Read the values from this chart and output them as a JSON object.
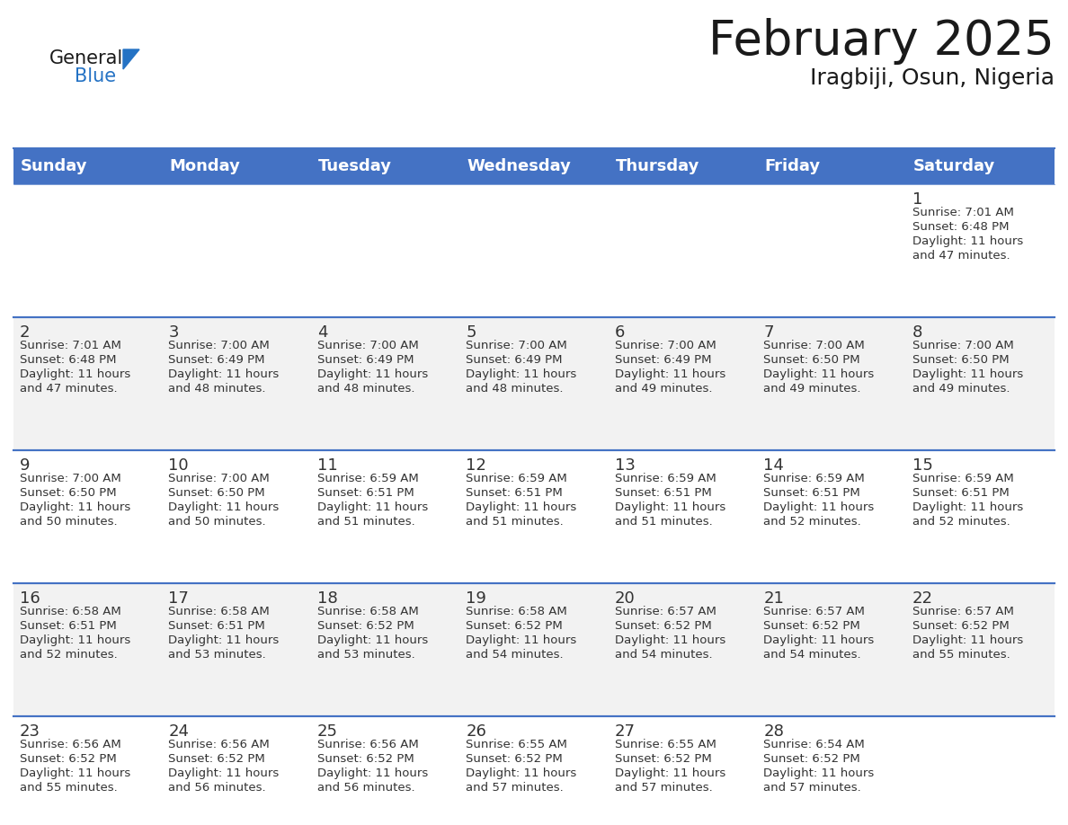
{
  "title": "February 2025",
  "subtitle": "Iragbiji, Osun, Nigeria",
  "header_color": "#4472C4",
  "header_text_color": "#FFFFFF",
  "bg_color": "#FFFFFF",
  "alt_row_color": "#F2F2F2",
  "border_color": "#4472C4",
  "text_color": "#333333",
  "day_names": [
    "Sunday",
    "Monday",
    "Tuesday",
    "Wednesday",
    "Thursday",
    "Friday",
    "Saturday"
  ],
  "title_fontsize": 38,
  "subtitle_fontsize": 18,
  "day_number_fontsize": 13,
  "cell_text_fontsize": 9.5,
  "header_fontsize": 13,
  "logo_general_fontsize": 15,
  "logo_blue_fontsize": 15,
  "days": [
    {
      "day": 1,
      "col": 6,
      "row": 0,
      "sunrise": "7:01 AM",
      "sunset": "6:48 PM",
      "daylight_line1": "Daylight: 11 hours",
      "daylight_line2": "and 47 minutes."
    },
    {
      "day": 2,
      "col": 0,
      "row": 1,
      "sunrise": "7:01 AM",
      "sunset": "6:48 PM",
      "daylight_line1": "Daylight: 11 hours",
      "daylight_line2": "and 47 minutes."
    },
    {
      "day": 3,
      "col": 1,
      "row": 1,
      "sunrise": "7:00 AM",
      "sunset": "6:49 PM",
      "daylight_line1": "Daylight: 11 hours",
      "daylight_line2": "and 48 minutes."
    },
    {
      "day": 4,
      "col": 2,
      "row": 1,
      "sunrise": "7:00 AM",
      "sunset": "6:49 PM",
      "daylight_line1": "Daylight: 11 hours",
      "daylight_line2": "and 48 minutes."
    },
    {
      "day": 5,
      "col": 3,
      "row": 1,
      "sunrise": "7:00 AM",
      "sunset": "6:49 PM",
      "daylight_line1": "Daylight: 11 hours",
      "daylight_line2": "and 48 minutes."
    },
    {
      "day": 6,
      "col": 4,
      "row": 1,
      "sunrise": "7:00 AM",
      "sunset": "6:49 PM",
      "daylight_line1": "Daylight: 11 hours",
      "daylight_line2": "and 49 minutes."
    },
    {
      "day": 7,
      "col": 5,
      "row": 1,
      "sunrise": "7:00 AM",
      "sunset": "6:50 PM",
      "daylight_line1": "Daylight: 11 hours",
      "daylight_line2": "and 49 minutes."
    },
    {
      "day": 8,
      "col": 6,
      "row": 1,
      "sunrise": "7:00 AM",
      "sunset": "6:50 PM",
      "daylight_line1": "Daylight: 11 hours",
      "daylight_line2": "and 49 minutes."
    },
    {
      "day": 9,
      "col": 0,
      "row": 2,
      "sunrise": "7:00 AM",
      "sunset": "6:50 PM",
      "daylight_line1": "Daylight: 11 hours",
      "daylight_line2": "and 50 minutes."
    },
    {
      "day": 10,
      "col": 1,
      "row": 2,
      "sunrise": "7:00 AM",
      "sunset": "6:50 PM",
      "daylight_line1": "Daylight: 11 hours",
      "daylight_line2": "and 50 minutes."
    },
    {
      "day": 11,
      "col": 2,
      "row": 2,
      "sunrise": "6:59 AM",
      "sunset": "6:51 PM",
      "daylight_line1": "Daylight: 11 hours",
      "daylight_line2": "and 51 minutes."
    },
    {
      "day": 12,
      "col": 3,
      "row": 2,
      "sunrise": "6:59 AM",
      "sunset": "6:51 PM",
      "daylight_line1": "Daylight: 11 hours",
      "daylight_line2": "and 51 minutes."
    },
    {
      "day": 13,
      "col": 4,
      "row": 2,
      "sunrise": "6:59 AM",
      "sunset": "6:51 PM",
      "daylight_line1": "Daylight: 11 hours",
      "daylight_line2": "and 51 minutes."
    },
    {
      "day": 14,
      "col": 5,
      "row": 2,
      "sunrise": "6:59 AM",
      "sunset": "6:51 PM",
      "daylight_line1": "Daylight: 11 hours",
      "daylight_line2": "and 52 minutes."
    },
    {
      "day": 15,
      "col": 6,
      "row": 2,
      "sunrise": "6:59 AM",
      "sunset": "6:51 PM",
      "daylight_line1": "Daylight: 11 hours",
      "daylight_line2": "and 52 minutes."
    },
    {
      "day": 16,
      "col": 0,
      "row": 3,
      "sunrise": "6:58 AM",
      "sunset": "6:51 PM",
      "daylight_line1": "Daylight: 11 hours",
      "daylight_line2": "and 52 minutes."
    },
    {
      "day": 17,
      "col": 1,
      "row": 3,
      "sunrise": "6:58 AM",
      "sunset": "6:51 PM",
      "daylight_line1": "Daylight: 11 hours",
      "daylight_line2": "and 53 minutes."
    },
    {
      "day": 18,
      "col": 2,
      "row": 3,
      "sunrise": "6:58 AM",
      "sunset": "6:52 PM",
      "daylight_line1": "Daylight: 11 hours",
      "daylight_line2": "and 53 minutes."
    },
    {
      "day": 19,
      "col": 3,
      "row": 3,
      "sunrise": "6:58 AM",
      "sunset": "6:52 PM",
      "daylight_line1": "Daylight: 11 hours",
      "daylight_line2": "and 54 minutes."
    },
    {
      "day": 20,
      "col": 4,
      "row": 3,
      "sunrise": "6:57 AM",
      "sunset": "6:52 PM",
      "daylight_line1": "Daylight: 11 hours",
      "daylight_line2": "and 54 minutes."
    },
    {
      "day": 21,
      "col": 5,
      "row": 3,
      "sunrise": "6:57 AM",
      "sunset": "6:52 PM",
      "daylight_line1": "Daylight: 11 hours",
      "daylight_line2": "and 54 minutes."
    },
    {
      "day": 22,
      "col": 6,
      "row": 3,
      "sunrise": "6:57 AM",
      "sunset": "6:52 PM",
      "daylight_line1": "Daylight: 11 hours",
      "daylight_line2": "and 55 minutes."
    },
    {
      "day": 23,
      "col": 0,
      "row": 4,
      "sunrise": "6:56 AM",
      "sunset": "6:52 PM",
      "daylight_line1": "Daylight: 11 hours",
      "daylight_line2": "and 55 minutes."
    },
    {
      "day": 24,
      "col": 1,
      "row": 4,
      "sunrise": "6:56 AM",
      "sunset": "6:52 PM",
      "daylight_line1": "Daylight: 11 hours",
      "daylight_line2": "and 56 minutes."
    },
    {
      "day": 25,
      "col": 2,
      "row": 4,
      "sunrise": "6:56 AM",
      "sunset": "6:52 PM",
      "daylight_line1": "Daylight: 11 hours",
      "daylight_line2": "and 56 minutes."
    },
    {
      "day": 26,
      "col": 3,
      "row": 4,
      "sunrise": "6:55 AM",
      "sunset": "6:52 PM",
      "daylight_line1": "Daylight: 11 hours",
      "daylight_line2": "and 57 minutes."
    },
    {
      "day": 27,
      "col": 4,
      "row": 4,
      "sunrise": "6:55 AM",
      "sunset": "6:52 PM",
      "daylight_line1": "Daylight: 11 hours",
      "daylight_line2": "and 57 minutes."
    },
    {
      "day": 28,
      "col": 5,
      "row": 4,
      "sunrise": "6:54 AM",
      "sunset": "6:52 PM",
      "daylight_line1": "Daylight: 11 hours",
      "daylight_line2": "and 57 minutes."
    }
  ]
}
